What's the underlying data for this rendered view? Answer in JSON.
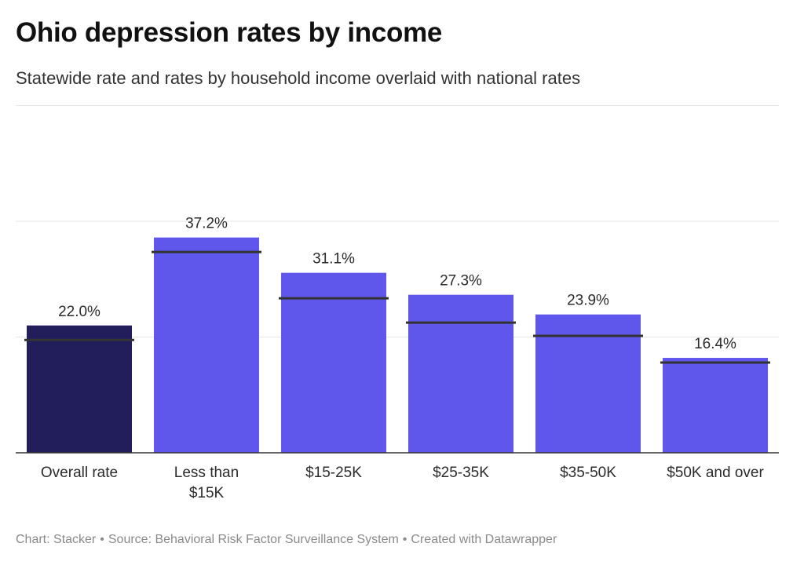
{
  "header": {
    "title": "Ohio depression rates by income",
    "subtitle": "Statewide rate and rates by household income overlaid with national rates"
  },
  "footer": {
    "chart_credit": "Chart: Stacker",
    "separator": "•",
    "source": "Source: Behavioral Risk Factor Surveillance System",
    "created_with": "Created with Datawrapper"
  },
  "colors": {
    "overall_bar": "#221e5c",
    "income_bar": "#5f57eb",
    "national_marker": "#333333",
    "gridline": "#e6e6e6",
    "axis": "#333333"
  },
  "chart_data": {
    "type": "bar",
    "categories": [
      [
        "Overall rate"
      ],
      [
        "Less than",
        "$15K"
      ],
      [
        "$15-25K"
      ],
      [
        "$25-35K"
      ],
      [
        "$35-50K"
      ],
      [
        "$50K and over"
      ]
    ],
    "values": [
      22.0,
      37.2,
      31.1,
      27.3,
      23.9,
      16.4
    ],
    "value_labels": [
      "22.0%",
      "37.2%",
      "31.1%",
      "27.3%",
      "23.9%",
      "16.4%"
    ],
    "national_rates": [
      19.5,
      34.7,
      26.7,
      22.5,
      20.2,
      15.6
    ],
    "ylim": [
      0,
      40
    ],
    "gridlines": [
      0,
      20,
      40
    ],
    "grid": true,
    "xlabel": "",
    "ylabel": ""
  }
}
